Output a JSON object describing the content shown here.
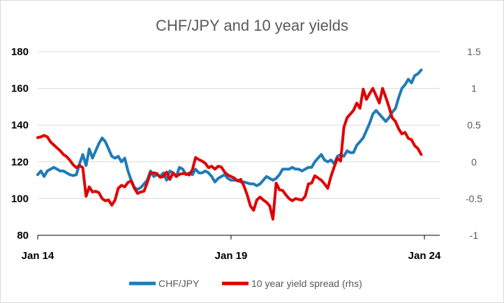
{
  "chart_data": {
    "type": "line",
    "title": "CHF/JPY and 10 year yields",
    "x_ticks": [
      "Jan 14",
      "Jan 19",
      "Jan 24"
    ],
    "x_range": [
      "2014-01",
      "2024-06"
    ],
    "y_left": {
      "ticks": [
        "180",
        "160",
        "140",
        "120",
        "100",
        "80"
      ],
      "range": [
        80,
        180
      ]
    },
    "y_right": {
      "ticks": [
        "1.5",
        "1",
        "0.5",
        "0",
        "-0.5",
        "-1"
      ],
      "range": [
        -1,
        1.5
      ]
    },
    "grid": true,
    "legend_position": "bottom",
    "series": [
      {
        "name": "CHF/JPY",
        "axis": "left",
        "color": "#1f7bb6",
        "points": [
          [
            "2014-01",
            113
          ],
          [
            "2014-02",
            115
          ],
          [
            "2014-03",
            112
          ],
          [
            "2014-04",
            115
          ],
          [
            "2014-05",
            116
          ],
          [
            "2014-06",
            117
          ],
          [
            "2014-07",
            116
          ],
          [
            "2014-08",
            115
          ],
          [
            "2014-09",
            115
          ],
          [
            "2014-10",
            114
          ],
          [
            "2014-11",
            113
          ],
          [
            "2014-12",
            112.5
          ],
          [
            "2015-01",
            113
          ],
          [
            "2015-02",
            119
          ],
          [
            "2015-03",
            124
          ],
          [
            "2015-04",
            118
          ],
          [
            "2015-05",
            127
          ],
          [
            "2015-06",
            122
          ],
          [
            "2015-07",
            126
          ],
          [
            "2015-08",
            130
          ],
          [
            "2015-09",
            133
          ],
          [
            "2015-10",
            131
          ],
          [
            "2015-11",
            127
          ],
          [
            "2015-12",
            123
          ],
          [
            "2016-01",
            122
          ],
          [
            "2016-02",
            123
          ],
          [
            "2016-03",
            120
          ],
          [
            "2016-04",
            122
          ],
          [
            "2016-05",
            115
          ],
          [
            "2016-06",
            110
          ],
          [
            "2016-07",
            106
          ],
          [
            "2016-08",
            105
          ],
          [
            "2016-09",
            106
          ],
          [
            "2016-10",
            108
          ],
          [
            "2016-11",
            110
          ],
          [
            "2016-12",
            115
          ],
          [
            "2017-01",
            112
          ],
          [
            "2017-02",
            113
          ],
          [
            "2017-03",
            112
          ],
          [
            "2017-04",
            114
          ],
          [
            "2017-05",
            110
          ],
          [
            "2017-06",
            115
          ],
          [
            "2017-07",
            114
          ],
          [
            "2017-08",
            112
          ],
          [
            "2017-09",
            117
          ],
          [
            "2017-10",
            116
          ],
          [
            "2017-11",
            113
          ],
          [
            "2017-12",
            114
          ],
          [
            "2018-01",
            113
          ],
          [
            "2018-02",
            116
          ],
          [
            "2018-03",
            114
          ],
          [
            "2018-04",
            114
          ],
          [
            "2018-05",
            115
          ],
          [
            "2018-06",
            114
          ],
          [
            "2018-07",
            112
          ],
          [
            "2018-08",
            109
          ],
          [
            "2018-09",
            111
          ],
          [
            "2018-10",
            112
          ],
          [
            "2018-11",
            113
          ],
          [
            "2018-12",
            111
          ],
          [
            "2019-01",
            110
          ],
          [
            "2019-02",
            110
          ],
          [
            "2019-03",
            110
          ],
          [
            "2019-04",
            109
          ],
          [
            "2019-05",
            109
          ],
          [
            "2019-06",
            108.5
          ],
          [
            "2019-07",
            108
          ],
          [
            "2019-08",
            108
          ],
          [
            "2019-09",
            107
          ],
          [
            "2019-10",
            108
          ],
          [
            "2019-11",
            110
          ],
          [
            "2019-12",
            112
          ],
          [
            "2020-01",
            111
          ],
          [
            "2020-02",
            110
          ],
          [
            "2020-03",
            111
          ],
          [
            "2020-04",
            113
          ],
          [
            "2020-05",
            116
          ],
          [
            "2020-06",
            116
          ],
          [
            "2020-07",
            116
          ],
          [
            "2020-08",
            117
          ],
          [
            "2020-09",
            116
          ],
          [
            "2020-10",
            116
          ],
          [
            "2020-11",
            115
          ],
          [
            "2020-12",
            116
          ],
          [
            "2021-01",
            117
          ],
          [
            "2021-02",
            117
          ],
          [
            "2021-03",
            120
          ],
          [
            "2021-04",
            122
          ],
          [
            "2021-05",
            124
          ],
          [
            "2021-06",
            121
          ],
          [
            "2021-07",
            120
          ],
          [
            "2021-08",
            121
          ],
          [
            "2021-09",
            119
          ],
          [
            "2021-10",
            123
          ],
          [
            "2021-11",
            124
          ],
          [
            "2021-12",
            123
          ],
          [
            "2022-01",
            126
          ],
          [
            "2022-02",
            125
          ],
          [
            "2022-03",
            125
          ],
          [
            "2022-04",
            129
          ],
          [
            "2022-05",
            131
          ],
          [
            "2022-06",
            133
          ],
          [
            "2022-07",
            137
          ],
          [
            "2022-08",
            141
          ],
          [
            "2022-09",
            146
          ],
          [
            "2022-10",
            148
          ],
          [
            "2022-11",
            146
          ],
          [
            "2022-12",
            144
          ],
          [
            "2023-01",
            142
          ],
          [
            "2023-02",
            144
          ],
          [
            "2023-03",
            147
          ],
          [
            "2023-04",
            149
          ],
          [
            "2023-05",
            155
          ],
          [
            "2023-06",
            160
          ],
          [
            "2023-07",
            162
          ],
          [
            "2023-08",
            165
          ],
          [
            "2023-09",
            163
          ],
          [
            "2023-10",
            167
          ],
          [
            "2023-11",
            168
          ],
          [
            "2023-12",
            170
          ]
        ]
      },
      {
        "name": "10 year yield spread (rhs)",
        "axis": "right",
        "color": "#e00000",
        "points": [
          [
            "2014-01",
            0.33
          ],
          [
            "2014-02",
            0.34
          ],
          [
            "2014-03",
            0.36
          ],
          [
            "2014-04",
            0.34
          ],
          [
            "2014-05",
            0.27
          ],
          [
            "2014-06",
            0.23
          ],
          [
            "2014-07",
            0.19
          ],
          [
            "2014-08",
            0.15
          ],
          [
            "2014-09",
            0.1
          ],
          [
            "2014-10",
            0.07
          ],
          [
            "2014-11",
            0.02
          ],
          [
            "2014-12",
            -0.04
          ],
          [
            "2015-01",
            -0.08
          ],
          [
            "2015-02",
            -0.05
          ],
          [
            "2015-03",
            -0.08
          ],
          [
            "2015-04",
            -0.47
          ],
          [
            "2015-05",
            -0.34
          ],
          [
            "2015-06",
            -0.41
          ],
          [
            "2015-07",
            -0.4
          ],
          [
            "2015-08",
            -0.42
          ],
          [
            "2015-09",
            -0.5
          ],
          [
            "2015-10",
            -0.53
          ],
          [
            "2015-11",
            -0.52
          ],
          [
            "2015-12",
            -0.59
          ],
          [
            "2016-01",
            -0.52
          ],
          [
            "2016-02",
            -0.36
          ],
          [
            "2016-03",
            -0.32
          ],
          [
            "2016-04",
            -0.34
          ],
          [
            "2016-05",
            -0.28
          ],
          [
            "2016-06",
            -0.26
          ],
          [
            "2016-07",
            -0.36
          ],
          [
            "2016-08",
            -0.43
          ],
          [
            "2016-09",
            -0.41
          ],
          [
            "2016-10",
            -0.4
          ],
          [
            "2016-11",
            -0.28
          ],
          [
            "2016-12",
            -0.15
          ],
          [
            "2017-01",
            -0.15
          ],
          [
            "2017-02",
            -0.16
          ],
          [
            "2017-03",
            -0.21
          ],
          [
            "2017-04",
            -0.2
          ],
          [
            "2017-05",
            -0.14
          ],
          [
            "2017-06",
            -0.24
          ],
          [
            "2017-07",
            -0.15
          ],
          [
            "2017-08",
            -0.2
          ],
          [
            "2017-09",
            -0.17
          ],
          [
            "2017-10",
            -0.16
          ],
          [
            "2017-11",
            -0.16
          ],
          [
            "2017-12",
            -0.18
          ],
          [
            "2018-01",
            -0.11
          ],
          [
            "2018-02",
            0.06
          ],
          [
            "2018-03",
            0.03
          ],
          [
            "2018-04",
            0.01
          ],
          [
            "2018-05",
            -0.02
          ],
          [
            "2018-06",
            -0.08
          ],
          [
            "2018-07",
            -0.06
          ],
          [
            "2018-08",
            -0.1
          ],
          [
            "2018-09",
            -0.06
          ],
          [
            "2018-10",
            -0.07
          ],
          [
            "2018-11",
            -0.14
          ],
          [
            "2018-12",
            -0.18
          ],
          [
            "2019-01",
            -0.2
          ],
          [
            "2019-02",
            -0.22
          ],
          [
            "2019-03",
            -0.26
          ],
          [
            "2019-04",
            -0.24
          ],
          [
            "2019-05",
            -0.33
          ],
          [
            "2019-06",
            -0.45
          ],
          [
            "2019-07",
            -0.6
          ],
          [
            "2019-08",
            -0.66
          ],
          [
            "2019-09",
            -0.52
          ],
          [
            "2019-10",
            -0.48
          ],
          [
            "2019-11",
            -0.52
          ],
          [
            "2019-12",
            -0.55
          ],
          [
            "2020-01",
            -0.6
          ],
          [
            "2020-02",
            -0.78
          ],
          [
            "2020-03",
            -0.29
          ],
          [
            "2020-04",
            -0.38
          ],
          [
            "2020-05",
            -0.39
          ],
          [
            "2020-06",
            -0.45
          ],
          [
            "2020-07",
            -0.5
          ],
          [
            "2020-08",
            -0.53
          ],
          [
            "2020-09",
            -0.5
          ],
          [
            "2020-10",
            -0.51
          ],
          [
            "2020-11",
            -0.52
          ],
          [
            "2020-12",
            -0.47
          ],
          [
            "2021-01",
            -0.3
          ],
          [
            "2021-02",
            -0.29
          ],
          [
            "2021-03",
            -0.19
          ],
          [
            "2021-04",
            -0.22
          ],
          [
            "2021-05",
            -0.25
          ],
          [
            "2021-06",
            -0.3
          ],
          [
            "2021-07",
            -0.36
          ],
          [
            "2021-08",
            -0.2
          ],
          [
            "2021-09",
            -0.07
          ],
          [
            "2021-10",
            0.05
          ],
          [
            "2021-11",
            0.01
          ],
          [
            "2021-12",
            0.47
          ],
          [
            "2022-01",
            0.6
          ],
          [
            "2022-02",
            0.65
          ],
          [
            "2022-03",
            0.7
          ],
          [
            "2022-04",
            0.8
          ],
          [
            "2022-05",
            0.73
          ],
          [
            "2022-06",
            0.99
          ],
          [
            "2022-07",
            0.85
          ],
          [
            "2022-08",
            0.93
          ],
          [
            "2022-09",
            1.0
          ],
          [
            "2022-10",
            0.9
          ],
          [
            "2022-11",
            0.8
          ],
          [
            "2022-12",
            1.0
          ],
          [
            "2023-01",
            0.88
          ],
          [
            "2023-02",
            0.75
          ],
          [
            "2023-03",
            0.6
          ],
          [
            "2023-04",
            0.55
          ],
          [
            "2023-05",
            0.45
          ],
          [
            "2023-06",
            0.38
          ],
          [
            "2023-07",
            0.4
          ],
          [
            "2023-08",
            0.32
          ],
          [
            "2023-09",
            0.3
          ],
          [
            "2023-10",
            0.22
          ],
          [
            "2023-11",
            0.18
          ],
          [
            "2023-12",
            0.1
          ]
        ]
      }
    ]
  }
}
